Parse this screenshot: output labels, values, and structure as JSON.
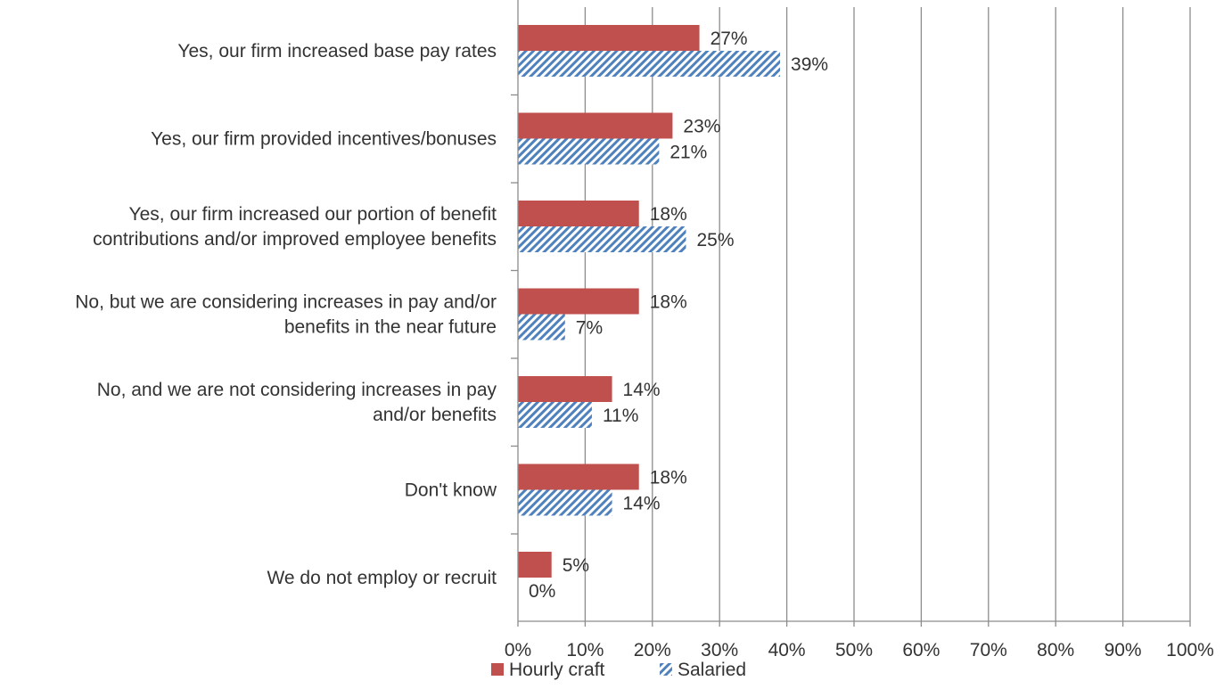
{
  "chart_data": {
    "type": "bar",
    "orientation": "horizontal",
    "title": "",
    "xlabel": "",
    "ylabel": "",
    "xlim": [
      0,
      100
    ],
    "x_ticks": [
      "0%",
      "10%",
      "20%",
      "30%",
      "40%",
      "50%",
      "60%",
      "70%",
      "80%",
      "90%",
      "100%"
    ],
    "grid": true,
    "legend_position": "bottom",
    "categories": [
      [
        "Yes, our firm increased base pay rates"
      ],
      [
        "Yes, our firm provided incentives/bonuses"
      ],
      [
        "Yes, our firm increased our portion of benefit",
        "contributions and/or improved employee benefits"
      ],
      [
        "No, but we are considering increases in pay and/or",
        "benefits in the near future"
      ],
      [
        "No, and we are not considering increases in pay",
        "and/or benefits"
      ],
      [
        "Don't know"
      ],
      [
        "We do not employ or recruit"
      ]
    ],
    "series": [
      {
        "name": "Hourly craft",
        "color": "#C0504D",
        "pattern": "solid",
        "values": [
          27,
          23,
          18,
          18,
          14,
          18,
          5
        ],
        "labels": [
          "27%",
          "23%",
          "18%",
          "18%",
          "14%",
          "18%",
          "5%"
        ]
      },
      {
        "name": "Salaried",
        "color": "#4F81BD",
        "pattern": "diagonal-stripes",
        "values": [
          39,
          21,
          25,
          7,
          11,
          14,
          0
        ],
        "labels": [
          "39%",
          "21%",
          "25%",
          "7%",
          "11%",
          "14%",
          "0%"
        ]
      }
    ]
  }
}
